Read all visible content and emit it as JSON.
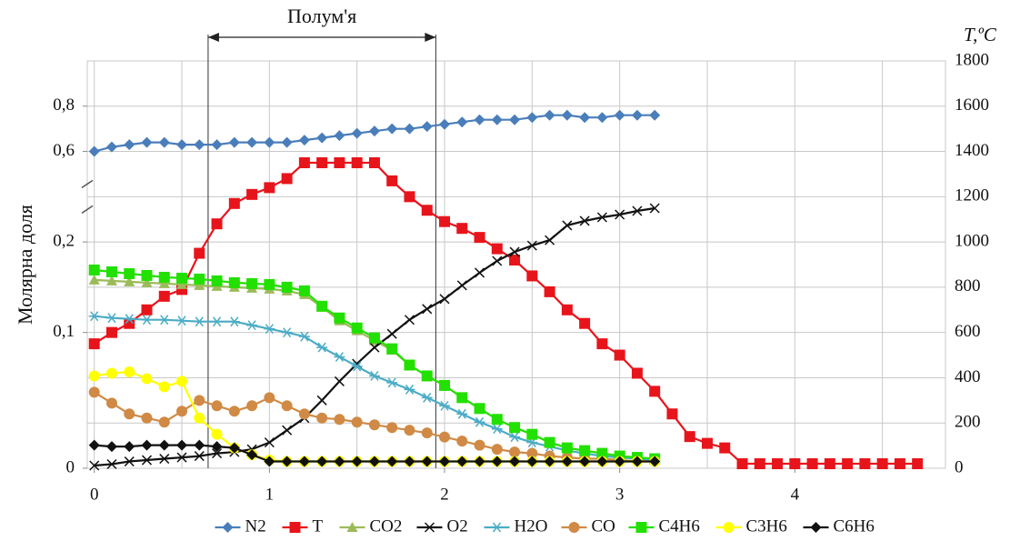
{
  "chart_data": {
    "type": "line",
    "ylabel": "Молярна доля",
    "y2label": "T,ºC",
    "annotations": [
      {
        "text": "Полум'я",
        "x": [
          0.65,
          1.95
        ]
      }
    ],
    "x": [
      0,
      0.1,
      0.2,
      0.3,
      0.4,
      0.5,
      0.6,
      0.7,
      0.8,
      0.9,
      1,
      1.1,
      1.2,
      1.3,
      1.4,
      1.5,
      1.6,
      1.7,
      1.8,
      1.9,
      2,
      2.1,
      2.2,
      2.3,
      2.4,
      2.5,
      2.6,
      2.7,
      2.8,
      2.9,
      3,
      3.1,
      3.2,
      3.3,
      3.4,
      3.5,
      3.6,
      3.7,
      3.8,
      3.9,
      4,
      4.1,
      4.2,
      4.3,
      4.4,
      4.5,
      4.6,
      4.7
    ],
    "xlim": [
      -0.04,
      4.86
    ],
    "xticks": [
      0,
      1,
      2,
      3,
      4
    ],
    "xgrid": [
      0,
      0.5,
      1,
      1.5,
      2,
      2.5,
      3,
      3.5,
      4,
      4.5
    ],
    "ylim": [
      0,
      1
    ],
    "yticks": [
      {
        "value": 0,
        "label": "0"
      },
      {
        "value": 0.1,
        "label": "0,1"
      },
      {
        "value": 0.2,
        "label": "0,2"
      },
      {
        "value": 0.6,
        "label": "0,6"
      },
      {
        "value": 0.8,
        "label": "0,8"
      }
    ],
    "axis_break": [
      0.2,
      0.6
    ],
    "y2lim": [
      0,
      1800
    ],
    "y2ticks": [
      0,
      200,
      400,
      600,
      800,
      1000,
      1200,
      1400,
      1600,
      1800
    ],
    "grid": true,
    "legend": "bottom",
    "series": [
      {
        "name": "N2",
        "color": "#4a7ebb",
        "marker": "diamond",
        "values": [
          0.6,
          0.62,
          0.63,
          0.64,
          0.64,
          0.63,
          0.63,
          0.63,
          0.64,
          0.64,
          0.64,
          0.64,
          0.65,
          0.66,
          0.67,
          0.68,
          0.69,
          0.7,
          0.7,
          0.71,
          0.72,
          0.73,
          0.74,
          0.74,
          0.74,
          0.75,
          0.76,
          0.76,
          0.75,
          0.75,
          0.76,
          0.76,
          0.76,
          null,
          null,
          null,
          null,
          null,
          null,
          null,
          null,
          null,
          null,
          null,
          null,
          null,
          null,
          null
        ]
      },
      {
        "name": "T",
        "color": "#e8141b",
        "marker": "square",
        "axis": "y2",
        "values": [
          550,
          600,
          640,
          700,
          760,
          790,
          950,
          1080,
          1170,
          1210,
          1240,
          1280,
          1350,
          1350,
          1350,
          1350,
          1350,
          1270,
          1200,
          1140,
          1090,
          1060,
          1020,
          970,
          920,
          850,
          780,
          700,
          640,
          550,
          500,
          420,
          340,
          240,
          140,
          110,
          90,
          20,
          20,
          20,
          20,
          20,
          20,
          20,
          20,
          20,
          20,
          20
        ]
      },
      {
        "name": "CO2",
        "color": "#9bbb59",
        "marker": "triangle",
        "values": [
          0.158,
          0.157,
          0.156,
          0.155,
          0.154,
          0.153,
          0.152,
          0.151,
          0.15,
          0.149,
          0.148,
          0.146,
          0.142,
          0.128,
          0.113,
          0.102,
          0.094,
          0.087,
          0.076,
          0.068,
          0.061,
          0.052,
          0.044,
          0.036,
          0.03,
          0.025,
          0.019,
          0.015,
          0.013,
          0.011,
          0.009,
          0.008,
          0.007,
          null,
          null,
          null,
          null,
          null,
          null,
          null,
          null,
          null,
          null,
          null,
          null,
          null,
          null,
          null
        ]
      },
      {
        "name": "O2",
        "color": "#111111",
        "marker": "x",
        "values": [
          0.002,
          0.003,
          0.005,
          0.006,
          0.007,
          0.008,
          0.009,
          0.011,
          0.012,
          0.014,
          0.019,
          0.028,
          0.037,
          0.05,
          0.064,
          0.077,
          0.089,
          0.099,
          0.114,
          0.126,
          0.137,
          0.152,
          0.166,
          0.179,
          0.189,
          0.196,
          0.208,
          0.273,
          0.293,
          0.309,
          0.321,
          0.337,
          0.349,
          null,
          null,
          null,
          null,
          null,
          null,
          null,
          null,
          null,
          null,
          null,
          null,
          null,
          null,
          null
        ]
      },
      {
        "name": "H2O",
        "color": "#4bacc6",
        "marker": "asterisk",
        "values": [
          0.118,
          0.116,
          0.115,
          0.114,
          0.114,
          0.113,
          0.112,
          0.112,
          0.112,
          0.108,
          0.104,
          0.1,
          0.097,
          0.089,
          0.082,
          0.075,
          0.068,
          0.063,
          0.058,
          0.052,
          0.046,
          0.04,
          0.034,
          0.029,
          0.023,
          0.019,
          0.016,
          0.013,
          0.011,
          0.009,
          0.008,
          0.007,
          0.006,
          null,
          null,
          null,
          null,
          null,
          null,
          null,
          null,
          null,
          null,
          null,
          null,
          null,
          null,
          null
        ]
      },
      {
        "name": "CO",
        "color": "#d08a45",
        "marker": "circle",
        "values": [
          0.056,
          0.048,
          0.04,
          0.037,
          0.034,
          0.042,
          0.05,
          0.046,
          0.042,
          0.046,
          0.052,
          0.046,
          0.04,
          0.037,
          0.036,
          0.034,
          0.032,
          0.03,
          0.028,
          0.026,
          0.023,
          0.02,
          0.017,
          0.014,
          0.012,
          0.011,
          0.009,
          0.008,
          0.007,
          0.007,
          0.006,
          0.005,
          0.005,
          null,
          null,
          null,
          null,
          null,
          null,
          null,
          null,
          null,
          null,
          null,
          null,
          null,
          null,
          null
        ]
      },
      {
        "name": "C4H6",
        "color": "#22e000",
        "marker": "square",
        "values": [
          0.169,
          0.167,
          0.165,
          0.163,
          0.161,
          0.16,
          0.159,
          0.157,
          0.155,
          0.154,
          0.153,
          0.15,
          0.146,
          0.129,
          0.116,
          0.105,
          0.096,
          0.088,
          0.076,
          0.068,
          0.061,
          0.052,
          0.044,
          0.036,
          0.03,
          0.025,
          0.019,
          0.015,
          0.013,
          0.011,
          0.009,
          0.008,
          0.007,
          null,
          null,
          null,
          null,
          null,
          null,
          null,
          null,
          null,
          null,
          null,
          null,
          null,
          null,
          null
        ]
      },
      {
        "name": "C3H6",
        "color": "#ffff00",
        "marker": "circle",
        "values": [
          0.068,
          0.07,
          0.071,
          0.066,
          0.06,
          0.064,
          0.037,
          0.025,
          0.015,
          0.01,
          0.006,
          0.005,
          0.005,
          0.005,
          0.005,
          0.005,
          0.005,
          0.005,
          0.005,
          0.005,
          0.005,
          0.005,
          0.005,
          0.005,
          0.005,
          0.005,
          0.005,
          0.005,
          0.005,
          0.005,
          0.005,
          0.005,
          0.005,
          null,
          null,
          null,
          null,
          null,
          null,
          null,
          null,
          null,
          null,
          null,
          null,
          null,
          null,
          null
        ]
      },
      {
        "name": "C6H6",
        "color": "#111111",
        "marker": "diamond",
        "values": [
          0.017,
          0.016,
          0.016,
          0.017,
          0.017,
          0.017,
          0.017,
          0.016,
          0.015,
          0.01,
          0.005,
          0.005,
          0.005,
          0.005,
          0.005,
          0.005,
          0.005,
          0.005,
          0.005,
          0.005,
          0.005,
          0.005,
          0.005,
          0.005,
          0.005,
          0.005,
          0.005,
          0.005,
          0.005,
          0.005,
          0.005,
          0.005,
          0.005,
          null,
          null,
          null,
          null,
          null,
          null,
          null,
          null,
          null,
          null,
          null,
          null,
          null,
          null,
          null
        ]
      }
    ]
  }
}
